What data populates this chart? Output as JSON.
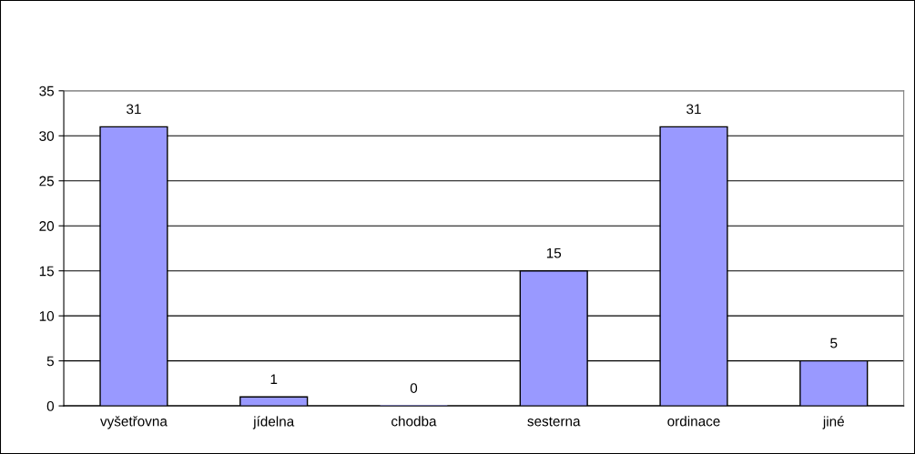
{
  "chart_data": {
    "type": "bar",
    "categories": [
      "vyšetřovna",
      "jídelna",
      "chodba",
      "sesterna",
      "ordinace",
      "jiné"
    ],
    "values": [
      31,
      1,
      0,
      15,
      31,
      5
    ],
    "color": "#9999ff",
    "ylim": [
      0,
      35
    ],
    "yticks": [
      0,
      5,
      10,
      15,
      20,
      25,
      30,
      35
    ],
    "grid": "y",
    "data_labels": true,
    "legend": false
  }
}
